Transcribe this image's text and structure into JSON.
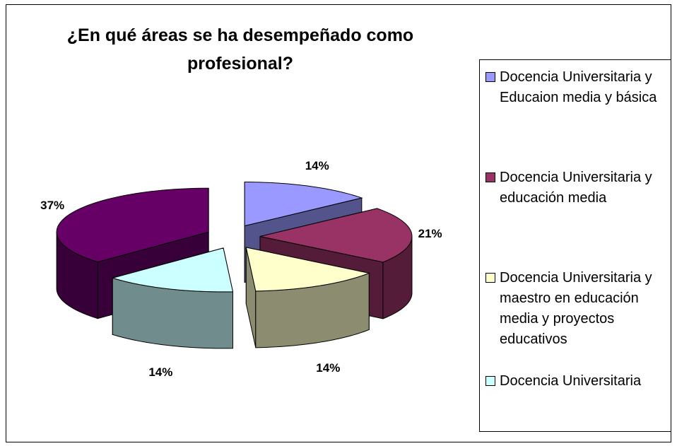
{
  "chart_data": {
    "type": "pie3d",
    "title": "¿En qué áreas se ha desempeñado como profesional?",
    "categories": [
      "Docencia Universitaria y Educaion media y básica",
      "Docencia Universitaria y educación media",
      "Docencia Universitaria y maestro en educación media y proyectos educativos",
      "Docencia Universitaria",
      null
    ],
    "values": [
      14,
      21,
      14,
      14,
      37
    ],
    "value_labels": [
      "14%",
      "21%",
      "14%",
      "14%",
      "37%"
    ],
    "colors": [
      "#9999ff",
      "#993366",
      "#ffffcc",
      "#ccffff",
      "#660066"
    ],
    "legend": "right"
  }
}
